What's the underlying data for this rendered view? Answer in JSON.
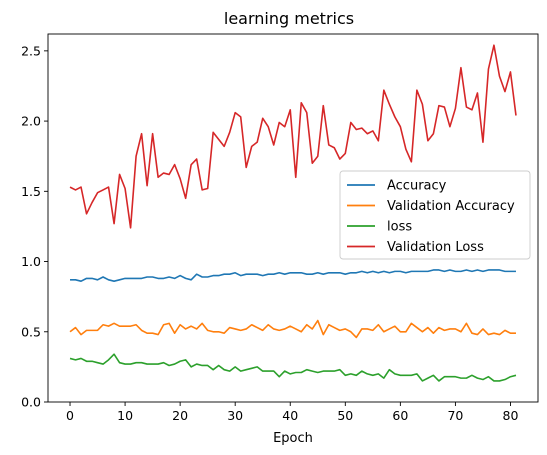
{
  "chart_data": {
    "type": "line",
    "title": "learning metrics",
    "xlabel": "Epoch",
    "ylabel": "",
    "xlim": [
      -4,
      85
    ],
    "ylim": [
      0,
      2.62
    ],
    "xticks": [
      0,
      10,
      20,
      30,
      40,
      50,
      60,
      70,
      80
    ],
    "yticks": [
      0.0,
      0.5,
      1.0,
      1.5,
      2.0,
      2.5
    ],
    "ytick_labels": [
      "0.0",
      "0.5",
      "1.0",
      "1.5",
      "2.0",
      "2.5"
    ],
    "grid": false,
    "legend_position": "center-right",
    "series": [
      {
        "name": "Accuracy",
        "color": "#1f77b4",
        "values": [
          0.87,
          0.87,
          0.86,
          0.88,
          0.88,
          0.87,
          0.89,
          0.87,
          0.86,
          0.87,
          0.88,
          0.88,
          0.88,
          0.88,
          0.89,
          0.89,
          0.88,
          0.88,
          0.89,
          0.88,
          0.9,
          0.88,
          0.87,
          0.91,
          0.89,
          0.89,
          0.9,
          0.9,
          0.91,
          0.91,
          0.92,
          0.9,
          0.91,
          0.91,
          0.91,
          0.9,
          0.91,
          0.91,
          0.92,
          0.91,
          0.92,
          0.92,
          0.92,
          0.91,
          0.91,
          0.92,
          0.91,
          0.92,
          0.92,
          0.92,
          0.91,
          0.92,
          0.92,
          0.93,
          0.92,
          0.93,
          0.92,
          0.93,
          0.92,
          0.93,
          0.93,
          0.92,
          0.93,
          0.93,
          0.93,
          0.93,
          0.94,
          0.94,
          0.93,
          0.94,
          0.93,
          0.93,
          0.94,
          0.93,
          0.94,
          0.93,
          0.94,
          0.94,
          0.94,
          0.93,
          0.93,
          0.93
        ]
      },
      {
        "name": "Validation Accuracy",
        "color": "#ff7f0e",
        "values": [
          0.5,
          0.53,
          0.48,
          0.51,
          0.51,
          0.51,
          0.55,
          0.54,
          0.56,
          0.54,
          0.54,
          0.54,
          0.55,
          0.51,
          0.49,
          0.49,
          0.48,
          0.55,
          0.56,
          0.49,
          0.55,
          0.52,
          0.54,
          0.52,
          0.56,
          0.51,
          0.5,
          0.5,
          0.49,
          0.53,
          0.52,
          0.51,
          0.52,
          0.55,
          0.53,
          0.51,
          0.55,
          0.52,
          0.51,
          0.52,
          0.54,
          0.52,
          0.5,
          0.55,
          0.52,
          0.58,
          0.48,
          0.55,
          0.53,
          0.51,
          0.52,
          0.5,
          0.46,
          0.52,
          0.52,
          0.51,
          0.55,
          0.5,
          0.52,
          0.54,
          0.5,
          0.5,
          0.56,
          0.53,
          0.5,
          0.53,
          0.49,
          0.53,
          0.51,
          0.52,
          0.52,
          0.5,
          0.56,
          0.49,
          0.48,
          0.52,
          0.48,
          0.49,
          0.48,
          0.51,
          0.49,
          0.49
        ]
      },
      {
        "name": "loss",
        "color": "#2ca02c",
        "values": [
          0.31,
          0.3,
          0.31,
          0.29,
          0.29,
          0.28,
          0.27,
          0.3,
          0.34,
          0.28,
          0.27,
          0.27,
          0.28,
          0.28,
          0.27,
          0.27,
          0.27,
          0.28,
          0.26,
          0.27,
          0.29,
          0.3,
          0.25,
          0.27,
          0.26,
          0.26,
          0.23,
          0.26,
          0.23,
          0.22,
          0.25,
          0.22,
          0.23,
          0.24,
          0.25,
          0.22,
          0.22,
          0.22,
          0.18,
          0.22,
          0.2,
          0.21,
          0.21,
          0.23,
          0.22,
          0.21,
          0.22,
          0.22,
          0.22,
          0.23,
          0.19,
          0.2,
          0.19,
          0.22,
          0.2,
          0.19,
          0.2,
          0.17,
          0.23,
          0.2,
          0.19,
          0.19,
          0.19,
          0.2,
          0.15,
          0.17,
          0.19,
          0.15,
          0.18,
          0.18,
          0.18,
          0.17,
          0.17,
          0.19,
          0.17,
          0.16,
          0.18,
          0.15,
          0.15,
          0.16,
          0.18,
          0.19
        ]
      },
      {
        "name": "Validation Loss",
        "color": "#d62728",
        "values": [
          1.53,
          1.51,
          1.53,
          1.34,
          1.42,
          1.49,
          1.51,
          1.53,
          1.27,
          1.62,
          1.52,
          1.24,
          1.75,
          1.91,
          1.54,
          1.91,
          1.6,
          1.63,
          1.62,
          1.69,
          1.59,
          1.45,
          1.69,
          1.73,
          1.51,
          1.52,
          1.92,
          1.87,
          1.82,
          1.92,
          2.06,
          2.03,
          1.67,
          1.82,
          1.85,
          2.02,
          1.96,
          1.83,
          1.99,
          1.96,
          2.08,
          1.6,
          2.13,
          2.06,
          1.7,
          1.75,
          2.11,
          1.83,
          1.81,
          1.73,
          1.77,
          1.99,
          1.94,
          1.95,
          1.91,
          1.93,
          1.86,
          2.22,
          2.12,
          2.03,
          1.96,
          1.8,
          1.71,
          2.22,
          2.12,
          1.86,
          1.91,
          2.11,
          2.1,
          1.96,
          2.09,
          2.38,
          2.1,
          2.08,
          2.2,
          1.85,
          2.37,
          2.54,
          2.32,
          2.21,
          2.35,
          2.04
        ]
      }
    ]
  }
}
